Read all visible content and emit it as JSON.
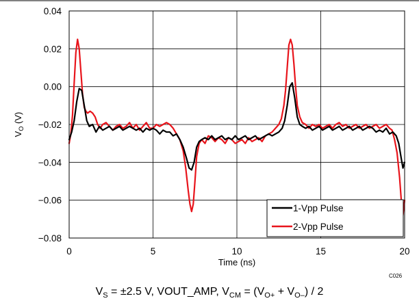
{
  "chart_data": {
    "type": "line",
    "xlabel": "Time (ns)",
    "ylabel_main": "V",
    "ylabel_sub": "O",
    "ylabel_unit": " (V)",
    "xlim": [
      0,
      20
    ],
    "ylim": [
      -0.08,
      0.04
    ],
    "x_ticks": [
      0,
      5,
      10,
      15,
      20
    ],
    "x_tick_labels": [
      "0",
      "5",
      "10",
      "15",
      "20"
    ],
    "y_ticks": [
      0.04,
      0.02,
      0.0,
      -0.02,
      -0.04,
      -0.06,
      -0.08
    ],
    "y_tick_labels": [
      "0.04",
      "0.02",
      "0.00",
      "−0.02",
      "−0.04",
      "−0.06",
      "−0.08"
    ],
    "grid": true,
    "legend_position": "bottom-right",
    "code_label": "C026",
    "caption": {
      "p1": "V",
      "s1": "S",
      "p2": " = ±2.5 V, VOUT_AMP, V",
      "s2": "CM",
      "p3": " = (V",
      "s3": "O+",
      "p4": " + V",
      "s4": "O–",
      "p5": ") / 2"
    },
    "series": [
      {
        "name": "1-Vpp Pulse",
        "color": "#000000",
        "x": [
          0,
          0.15,
          0.3,
          0.45,
          0.6,
          0.75,
          0.9,
          1.05,
          1.2,
          1.4,
          1.6,
          1.8,
          2.0,
          2.2,
          2.4,
          2.6,
          2.8,
          3.0,
          3.2,
          3.4,
          3.6,
          3.8,
          4.0,
          4.2,
          4.4,
          4.6,
          4.8,
          5.0,
          5.2,
          5.4,
          5.6,
          5.8,
          6.0,
          6.2,
          6.4,
          6.6,
          6.8,
          7.0,
          7.15,
          7.3,
          7.45,
          7.6,
          7.75,
          7.9,
          8.1,
          8.3,
          8.5,
          8.7,
          8.9,
          9.1,
          9.3,
          9.5,
          9.7,
          9.9,
          10.1,
          10.3,
          10.5,
          10.7,
          10.9,
          11.1,
          11.3,
          11.5,
          11.7,
          11.9,
          12.1,
          12.3,
          12.5,
          12.7,
          12.85,
          13.0,
          13.15,
          13.3,
          13.45,
          13.6,
          13.75,
          13.9,
          14.1,
          14.3,
          14.5,
          14.7,
          14.9,
          15.1,
          15.3,
          15.5,
          15.7,
          15.9,
          16.1,
          16.3,
          16.5,
          16.7,
          16.9,
          17.1,
          17.3,
          17.5,
          17.7,
          17.9,
          18.1,
          18.3,
          18.5,
          18.7,
          18.9,
          19.1,
          19.3,
          19.5,
          19.65,
          19.8,
          19.9,
          20.0
        ],
        "y": [
          -0.028,
          -0.024,
          -0.018,
          -0.008,
          -0.001,
          -0.002,
          -0.01,
          -0.018,
          -0.021,
          -0.02,
          -0.024,
          -0.021,
          -0.023,
          -0.022,
          -0.021,
          -0.023,
          -0.022,
          -0.021,
          -0.023,
          -0.022,
          -0.021,
          -0.022,
          -0.023,
          -0.022,
          -0.024,
          -0.022,
          -0.023,
          -0.022,
          -0.023,
          -0.025,
          -0.023,
          -0.024,
          -0.024,
          -0.026,
          -0.025,
          -0.028,
          -0.032,
          -0.038,
          -0.043,
          -0.044,
          -0.04,
          -0.032,
          -0.029,
          -0.028,
          -0.027,
          -0.028,
          -0.026,
          -0.028,
          -0.027,
          -0.026,
          -0.028,
          -0.027,
          -0.028,
          -0.026,
          -0.028,
          -0.027,
          -0.026,
          -0.028,
          -0.027,
          -0.026,
          -0.028,
          -0.027,
          -0.026,
          -0.025,
          -0.026,
          -0.025,
          -0.024,
          -0.022,
          -0.018,
          -0.01,
          0.0,
          0.002,
          -0.006,
          -0.016,
          -0.02,
          -0.021,
          -0.022,
          -0.021,
          -0.023,
          -0.022,
          -0.021,
          -0.023,
          -0.022,
          -0.021,
          -0.023,
          -0.022,
          -0.021,
          -0.023,
          -0.022,
          -0.021,
          -0.023,
          -0.022,
          -0.021,
          -0.023,
          -0.022,
          -0.021,
          -0.022,
          -0.024,
          -0.023,
          -0.024,
          -0.022,
          -0.025,
          -0.024,
          -0.026,
          -0.03,
          -0.038,
          -0.043,
          -0.04
        ]
      },
      {
        "name": "2-Vpp Pulse",
        "color": "#e8141b",
        "x": [
          0,
          0.1,
          0.2,
          0.3,
          0.4,
          0.5,
          0.6,
          0.7,
          0.8,
          0.9,
          1.0,
          1.1,
          1.25,
          1.4,
          1.55,
          1.7,
          1.85,
          2.0,
          2.2,
          2.4,
          2.6,
          2.8,
          3.0,
          3.2,
          3.4,
          3.6,
          3.8,
          4.0,
          4.2,
          4.4,
          4.6,
          4.8,
          5.0,
          5.2,
          5.4,
          5.6,
          5.8,
          6.0,
          6.2,
          6.4,
          6.6,
          6.8,
          6.95,
          7.1,
          7.2,
          7.3,
          7.4,
          7.5,
          7.6,
          7.75,
          7.9,
          8.1,
          8.3,
          8.5,
          8.7,
          8.9,
          9.1,
          9.3,
          9.5,
          9.7,
          9.9,
          10.1,
          10.3,
          10.5,
          10.7,
          10.9,
          11.1,
          11.3,
          11.5,
          11.7,
          11.9,
          12.1,
          12.3,
          12.5,
          12.65,
          12.8,
          12.9,
          13.0,
          13.1,
          13.2,
          13.3,
          13.4,
          13.5,
          13.6,
          13.75,
          13.9,
          14.1,
          14.3,
          14.5,
          14.7,
          14.9,
          15.1,
          15.3,
          15.5,
          15.7,
          15.9,
          16.1,
          16.3,
          16.5,
          16.7,
          16.9,
          17.1,
          17.3,
          17.5,
          17.7,
          17.9,
          18.1,
          18.3,
          18.5,
          18.7,
          18.9,
          19.1,
          19.25,
          19.4,
          19.55,
          19.7,
          19.8,
          19.9,
          20.0
        ],
        "y": [
          -0.03,
          -0.025,
          -0.015,
          0.002,
          0.018,
          0.025,
          0.02,
          0.008,
          -0.004,
          -0.011,
          -0.013,
          -0.014,
          -0.013,
          -0.014,
          -0.016,
          -0.02,
          -0.022,
          -0.02,
          -0.019,
          -0.021,
          -0.023,
          -0.021,
          -0.02,
          -0.022,
          -0.021,
          -0.019,
          -0.022,
          -0.02,
          -0.023,
          -0.021,
          -0.019,
          -0.022,
          -0.022,
          -0.02,
          -0.021,
          -0.02,
          -0.019,
          -0.02,
          -0.022,
          -0.025,
          -0.028,
          -0.034,
          -0.043,
          -0.055,
          -0.062,
          -0.066,
          -0.062,
          -0.05,
          -0.037,
          -0.03,
          -0.028,
          -0.03,
          -0.026,
          -0.027,
          -0.029,
          -0.027,
          -0.028,
          -0.03,
          -0.027,
          -0.028,
          -0.03,
          -0.029,
          -0.028,
          -0.03,
          -0.027,
          -0.029,
          -0.028,
          -0.027,
          -0.029,
          -0.026,
          -0.025,
          -0.024,
          -0.022,
          -0.02,
          -0.017,
          -0.01,
          -0.002,
          0.01,
          0.022,
          0.025,
          0.022,
          0.012,
          0.0,
          -0.01,
          -0.016,
          -0.019,
          -0.02,
          -0.022,
          -0.02,
          -0.021,
          -0.02,
          -0.022,
          -0.021,
          -0.02,
          -0.022,
          -0.02,
          -0.019,
          -0.021,
          -0.02,
          -0.022,
          -0.021,
          -0.02,
          -0.022,
          -0.021,
          -0.02,
          -0.022,
          -0.021,
          -0.02,
          -0.022,
          -0.021,
          -0.02,
          -0.022,
          -0.023,
          -0.028,
          -0.035,
          -0.048,
          -0.06,
          -0.068,
          -0.06
        ]
      }
    ]
  }
}
